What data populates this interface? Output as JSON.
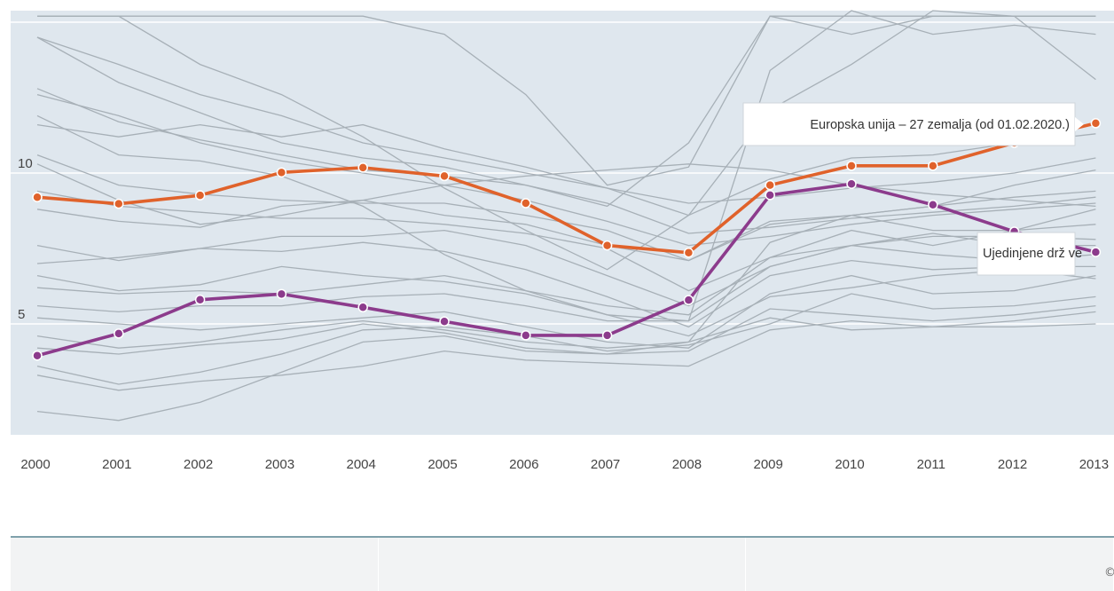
{
  "chart_data": {
    "type": "line",
    "x": [
      "2000",
      "2001",
      "2002",
      "2003",
      "2004",
      "2005",
      "2006",
      "2007",
      "2008",
      "2009",
      "2010",
      "2011",
      "2012",
      "2013"
    ],
    "yticks": [
      5,
      10
    ],
    "ylim": [
      1,
      15
    ],
    "grid": true,
    "highlighted": [
      {
        "name": "Europska unija – 27 zemalja (od 01.02.2020.)",
        "color": "#e0622b",
        "values": [
          9.2,
          8.98,
          9.26,
          10.02,
          10.18,
          9.9,
          9.0,
          7.6,
          7.36,
          9.6,
          10.24,
          10.24,
          11.0,
          11.65
        ]
      },
      {
        "name": "Ujedinjene drž ve",
        "color": "#8c3b8c",
        "values": [
          3.95,
          4.68,
          5.8,
          5.99,
          5.55,
          5.08,
          4.62,
          4.62,
          5.79,
          9.27,
          9.64,
          8.95,
          8.06,
          7.38
        ]
      }
    ],
    "background_series": [
      [
        14.5,
        13.6,
        12.6,
        11.9,
        11.0,
        10.5,
        10.0,
        9.5,
        9.0,
        9.2,
        9.5,
        9.7,
        10.0,
        10.5
      ],
      [
        14.5,
        13.0,
        12.0,
        11.0,
        10.5,
        10.2,
        9.6,
        9.0,
        8.0,
        8.2,
        8.5,
        8.7,
        8.9,
        9.2
      ],
      [
        12.6,
        11.9,
        11.0,
        10.4,
        10.0,
        9.6,
        9.1,
        8.4,
        7.6,
        7.9,
        8.3,
        8.6,
        8.8,
        9.0
      ],
      [
        11.6,
        11.2,
        11.6,
        11.2,
        11.6,
        10.8,
        10.2,
        9.5,
        8.6,
        9.8,
        10.5,
        10.6,
        11.0,
        11.3
      ],
      [
        10.6,
        9.6,
        9.3,
        9.1,
        9.0,
        9.0,
        8.6,
        8.1,
        7.1,
        8.4,
        8.6,
        8.9,
        9.2,
        9.4
      ],
      [
        10.3,
        9.1,
        8.3,
        8.6,
        9.1,
        9.6,
        9.9,
        10.1,
        10.3,
        10.1,
        9.6,
        9.3,
        9.1,
        8.9
      ],
      [
        9.4,
        8.9,
        8.7,
        8.5,
        8.5,
        8.3,
        8.0,
        7.5,
        6.1,
        7.2,
        7.6,
        8.0,
        7.6,
        7.6
      ],
      [
        8.8,
        8.4,
        8.2,
        8.9,
        9.1,
        8.6,
        8.3,
        7.6,
        7.1,
        8.3,
        8.6,
        8.1,
        8.1,
        8.3
      ],
      [
        7.6,
        7.1,
        7.5,
        7.9,
        7.9,
        8.1,
        7.6,
        6.6,
        5.6,
        6.9,
        7.6,
        7.9,
        7.9,
        7.8
      ],
      [
        7.0,
        7.2,
        7.5,
        7.4,
        7.7,
        7.4,
        6.8,
        5.9,
        4.9,
        6.6,
        7.1,
        6.8,
        6.9,
        6.9
      ],
      [
        6.6,
        6.1,
        6.3,
        6.9,
        6.6,
        6.4,
        6.0,
        5.3,
        4.6,
        5.9,
        6.2,
        6.6,
        6.8,
        6.5
      ],
      [
        6.2,
        6.0,
        6.1,
        6.0,
        6.3,
        6.6,
        6.1,
        5.6,
        5.3,
        7.2,
        8.1,
        7.6,
        8.1,
        8.8
      ],
      [
        5.6,
        5.4,
        5.6,
        5.6,
        5.9,
        6.0,
        5.6,
        5.1,
        5.1,
        6.9,
        7.6,
        7.3,
        7.1,
        7.3
      ],
      [
        5.2,
        5.0,
        4.8,
        5.0,
        5.2,
        5.4,
        4.9,
        4.4,
        4.2,
        6.0,
        6.6,
        6.0,
        6.1,
        6.6
      ],
      [
        4.6,
        4.2,
        4.4,
        4.8,
        5.1,
        4.8,
        4.4,
        4.2,
        4.4,
        5.2,
        4.8,
        4.9,
        5.1,
        5.4
      ],
      [
        4.2,
        4.0,
        4.3,
        4.5,
        5.0,
        4.7,
        4.2,
        4.0,
        4.1,
        5.5,
        5.3,
        5.1,
        5.3,
        5.6
      ],
      [
        3.6,
        3.0,
        3.4,
        4.0,
        4.8,
        4.9,
        4.6,
        4.1,
        4.3,
        5.0,
        6.0,
        5.5,
        5.6,
        5.9
      ],
      [
        3.3,
        2.8,
        3.1,
        3.3,
        3.6,
        4.1,
        3.8,
        3.7,
        3.6,
        4.8,
        5.1,
        4.9,
        4.9,
        5.0
      ],
      [
        2.1,
        1.8,
        2.4,
        3.4,
        4.4,
        4.6,
        4.1,
        4.0,
        4.4,
        7.7,
        8.6,
        8.9,
        9.6,
        10.1
      ],
      [
        11.9,
        10.6,
        10.4,
        9.9,
        8.9,
        7.3,
        6.1,
        5.3,
        5.1,
        13.4,
        15.4,
        14.6,
        14.9,
        14.6
      ],
      [
        15.2,
        15.2,
        13.6,
        12.6,
        11.2,
        9.5,
        8.1,
        6.8,
        8.6,
        12.1,
        13.6,
        15.4,
        15.2,
        13.1
      ],
      [
        15.2,
        15.2,
        15.2,
        15.2,
        15.2,
        14.6,
        12.6,
        9.6,
        10.2,
        15.2,
        15.2,
        15.2,
        15.2,
        15.2
      ],
      [
        12.8,
        11.7,
        11.1,
        10.6,
        10.1,
        9.9,
        9.6,
        8.9,
        11.0,
        15.2,
        14.6,
        15.2,
        15.2,
        15.2
      ]
    ]
  }
}
